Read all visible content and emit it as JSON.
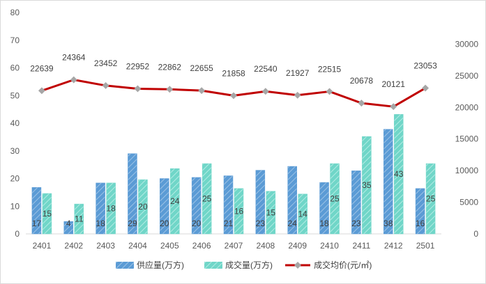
{
  "chart_data": {
    "type": "bar",
    "categories": [
      "2401",
      "2402",
      "2403",
      "2404",
      "2405",
      "2406",
      "2407",
      "2408",
      "2409",
      "2410",
      "2411",
      "2412",
      "2501"
    ],
    "series": [
      {
        "name": "供应量(万方)",
        "type": "bar",
        "axis": "left",
        "color": "#5b9bd5",
        "values": [
          17,
          4,
          18,
          29,
          20,
          20,
          21,
          23,
          24,
          18,
          23,
          38,
          16
        ],
        "plotted": [
          16.8,
          4.5,
          18.4,
          29.0,
          20.0,
          20.4,
          21.0,
          23.0,
          24.4,
          18.6,
          22.8,
          37.8,
          16.4
        ]
      },
      {
        "name": "成交量(万方)",
        "type": "bar",
        "axis": "left",
        "color": "#70d6c8",
        "values": [
          15,
          11,
          18,
          20,
          24,
          25,
          16,
          15,
          14,
          25,
          35,
          43,
          25
        ],
        "plotted": [
          14.6,
          10.8,
          18.4,
          19.6,
          23.6,
          25.4,
          16.4,
          15.4,
          14.4,
          25.4,
          35.2,
          43.2,
          25.4
        ]
      },
      {
        "name": "成交均价(元/㎡)",
        "type": "line",
        "axis": "right",
        "color": "#c00000",
        "values": [
          22639,
          24364,
          23452,
          22952,
          22862,
          22655,
          21858,
          22540,
          21927,
          22515,
          20678,
          20121,
          23053
        ]
      }
    ],
    "yaxis_left": {
      "min": 0,
      "max": 80,
      "ticks": [
        "0",
        "10",
        "20",
        "30",
        "40",
        "50",
        "60",
        "70",
        "80"
      ]
    },
    "yaxis_right": {
      "min": 0,
      "max": 35000,
      "ticks": [
        "0",
        "5000",
        "10000",
        "15000",
        "20000",
        "25000",
        "30000"
      ]
    },
    "legend": {
      "position": "bottom",
      "items": [
        "供应量(万方)",
        "成交量(万方)",
        "成交均价(元/㎡)"
      ]
    },
    "grid": false,
    "title": "",
    "xlabel": "",
    "ylabel": ""
  }
}
